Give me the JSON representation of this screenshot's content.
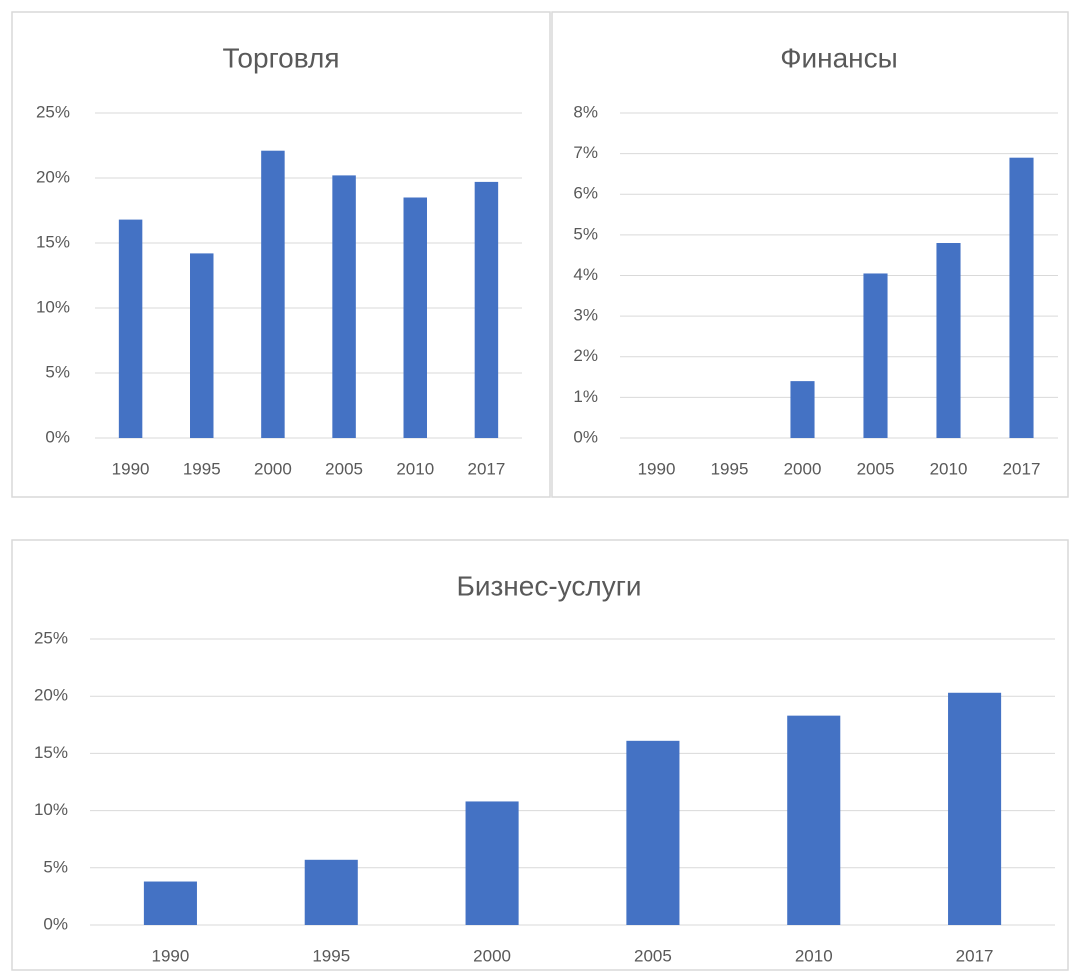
{
  "chart_data": [
    {
      "type": "bar",
      "title": "Торговля",
      "categories": [
        "1990",
        "1995",
        "2000",
        "2005",
        "2010",
        "2017"
      ],
      "values": [
        16.8,
        14.2,
        22.1,
        20.2,
        18.5,
        19.7
      ],
      "color": "#4472c4",
      "ylim": [
        0,
        25
      ],
      "yticks": [
        {
          "value": 0,
          "label": "0%"
        },
        {
          "value": 5,
          "label": "5%"
        },
        {
          "value": 10,
          "label": "10%"
        },
        {
          "value": 15,
          "label": "15%"
        },
        {
          "value": 20,
          "label": "20%"
        },
        {
          "value": 25,
          "label": "25%"
        }
      ],
      "grid": true
    },
    {
      "type": "bar",
      "title": "Финансы",
      "categories": [
        "1990",
        "1995",
        "2000",
        "2005",
        "2010",
        "2017"
      ],
      "values": [
        0,
        0,
        1.4,
        4.05,
        4.8,
        6.9
      ],
      "color": "#4472c4",
      "ylim": [
        0,
        8
      ],
      "yticks": [
        {
          "value": 0,
          "label": "0%"
        },
        {
          "value": 1,
          "label": "1%"
        },
        {
          "value": 2,
          "label": "2%"
        },
        {
          "value": 3,
          "label": "3%"
        },
        {
          "value": 4,
          "label": "4%"
        },
        {
          "value": 5,
          "label": "5%"
        },
        {
          "value": 6,
          "label": "6%"
        },
        {
          "value": 7,
          "label": "7%"
        },
        {
          "value": 8,
          "label": "8%"
        }
      ],
      "grid": true
    },
    {
      "type": "bar",
      "title": "Бизнес-услуги",
      "categories": [
        "1990",
        "1995",
        "2000",
        "2005",
        "2010",
        "2017"
      ],
      "values": [
        3.8,
        5.7,
        10.8,
        16.1,
        18.3,
        20.3
      ],
      "color": "#4472c4",
      "ylim": [
        0,
        25
      ],
      "yticks": [
        {
          "value": 0,
          "label": "0%"
        },
        {
          "value": 5,
          "label": "5%"
        },
        {
          "value": 10,
          "label": "10%"
        },
        {
          "value": 15,
          "label": "15%"
        },
        {
          "value": 20,
          "label": "20%"
        },
        {
          "value": 25,
          "label": "25%"
        }
      ],
      "grid": true
    }
  ]
}
